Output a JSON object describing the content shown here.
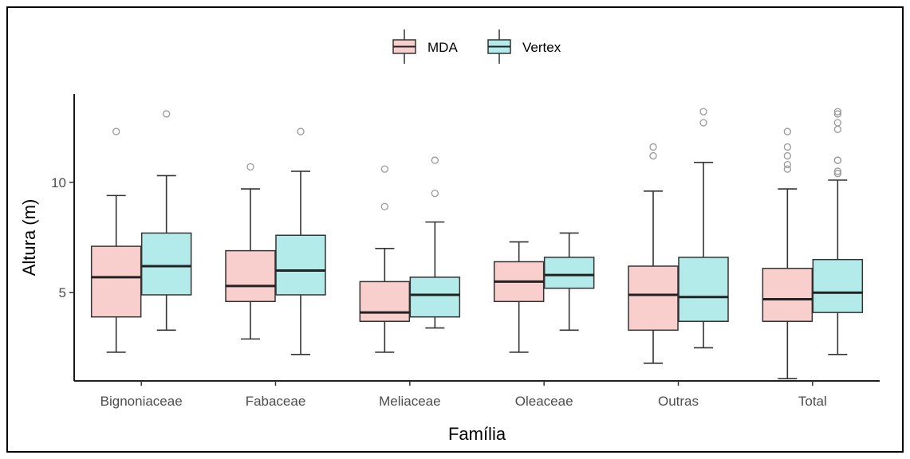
{
  "chart_data": {
    "type": "boxplot",
    "xlabel": "Família",
    "ylabel": "Altura (m)",
    "ylim": [
      1.0,
      14.0
    ],
    "yticks": [
      5,
      10
    ],
    "grid": false,
    "legend_placement": "top",
    "categories": [
      "Bignoniaceae",
      "Fabaceae",
      "Meliaceae",
      "Oleaceae",
      "Outras",
      "Total"
    ],
    "series": [
      {
        "name": "MDA",
        "color": "#f8cfcc",
        "boxes": [
          {
            "min": 2.3,
            "q1": 3.9,
            "median": 5.7,
            "q3": 7.1,
            "max": 9.4,
            "outliers": [
              12.3
            ]
          },
          {
            "min": 2.9,
            "q1": 4.6,
            "median": 5.3,
            "q3": 6.9,
            "max": 9.7,
            "outliers": [
              10.7
            ]
          },
          {
            "min": 2.3,
            "q1": 3.7,
            "median": 4.1,
            "q3": 5.5,
            "max": 7.0,
            "outliers": [
              8.9,
              10.6
            ]
          },
          {
            "min": 2.3,
            "q1": 4.6,
            "median": 5.5,
            "q3": 6.4,
            "max": 7.3,
            "outliers": []
          },
          {
            "min": 1.8,
            "q1": 3.3,
            "median": 4.9,
            "q3": 6.2,
            "max": 9.6,
            "outliers": [
              11.2,
              11.6
            ]
          },
          {
            "min": 1.1,
            "q1": 3.7,
            "median": 4.7,
            "q3": 6.1,
            "max": 9.7,
            "outliers": [
              10.6,
              10.8,
              11.2,
              11.6,
              12.3
            ]
          }
        ]
      },
      {
        "name": "Vertex",
        "color": "#b3eaea",
        "boxes": [
          {
            "min": 3.3,
            "q1": 4.9,
            "median": 6.2,
            "q3": 7.7,
            "max": 10.3,
            "outliers": [
              13.1
            ]
          },
          {
            "min": 2.2,
            "q1": 4.9,
            "median": 6.0,
            "q3": 7.6,
            "max": 10.5,
            "outliers": [
              12.3
            ]
          },
          {
            "min": 3.4,
            "q1": 3.9,
            "median": 4.9,
            "q3": 5.7,
            "max": 8.2,
            "outliers": [
              9.5,
              11.0
            ]
          },
          {
            "min": 3.3,
            "q1": 5.2,
            "median": 5.8,
            "q3": 6.6,
            "max": 7.7,
            "outliers": []
          },
          {
            "min": 2.5,
            "q1": 3.7,
            "median": 4.8,
            "q3": 6.6,
            "max": 10.9,
            "outliers": [
              12.7,
              13.2
            ]
          },
          {
            "min": 2.2,
            "q1": 4.1,
            "median": 5.0,
            "q3": 6.5,
            "max": 10.1,
            "outliers": [
              10.4,
              10.5,
              11.0,
              11.0,
              12.4,
              12.7,
              13.1,
              13.2
            ]
          }
        ]
      }
    ]
  }
}
